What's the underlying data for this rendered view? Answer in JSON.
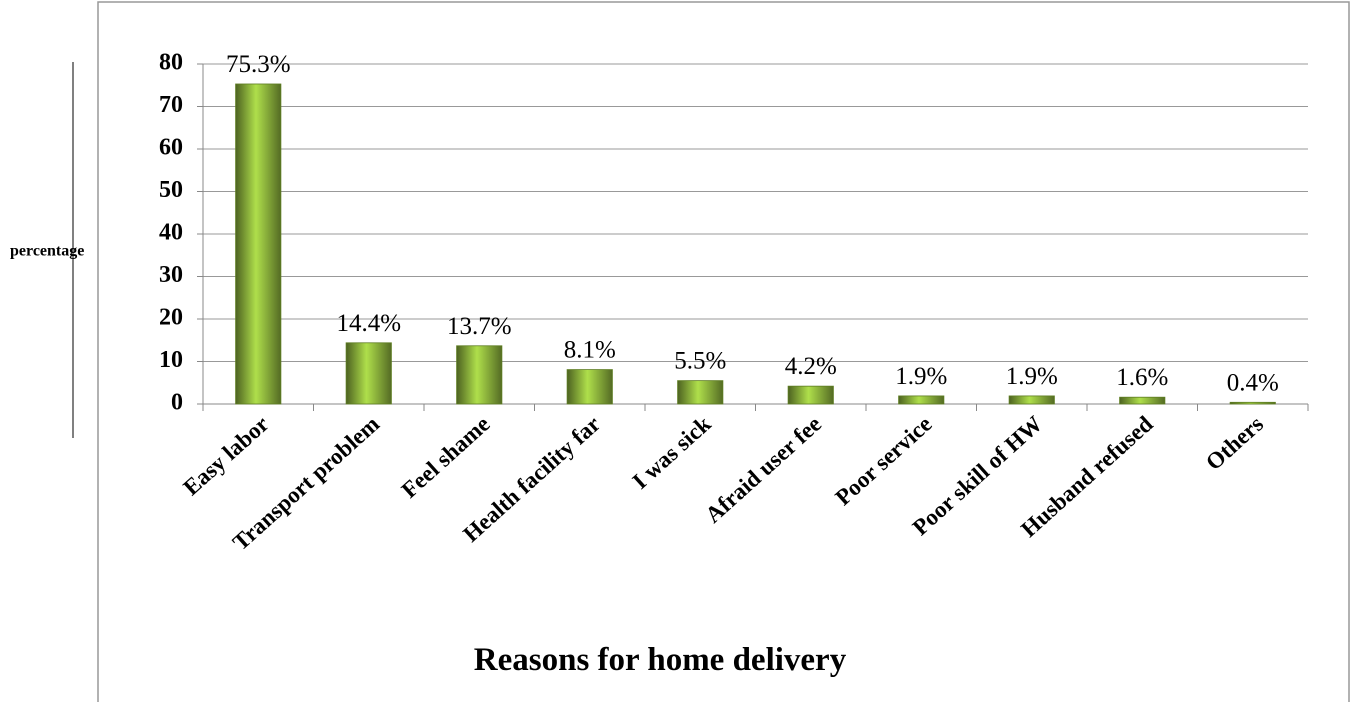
{
  "chart_data": {
    "type": "bar",
    "x_label": "Reasons for home delivery",
    "y_label": "percentage",
    "categories": [
      "Easy labor",
      "Transport problem",
      "Feel shame",
      "Health facility far",
      "I was sick",
      "Afraid user fee",
      "Poor service",
      "Poor skill of HW",
      "Husband refused",
      "Others"
    ],
    "values": [
      75.3,
      14.4,
      13.7,
      8.1,
      5.5,
      4.2,
      1.9,
      1.9,
      1.6,
      0.4
    ],
    "value_labels": [
      "75.3%",
      "14.4%",
      "13.7%",
      "8.1%",
      "5.5%",
      "4.2%",
      "1.9%",
      "1.9%",
      "1.6%",
      "0.4%"
    ],
    "color": "#8cb23c",
    "ylim": [
      0,
      80
    ],
    "yticks": [
      0,
      10,
      20,
      30,
      40,
      50,
      60,
      70,
      80
    ],
    "grid": true
  }
}
